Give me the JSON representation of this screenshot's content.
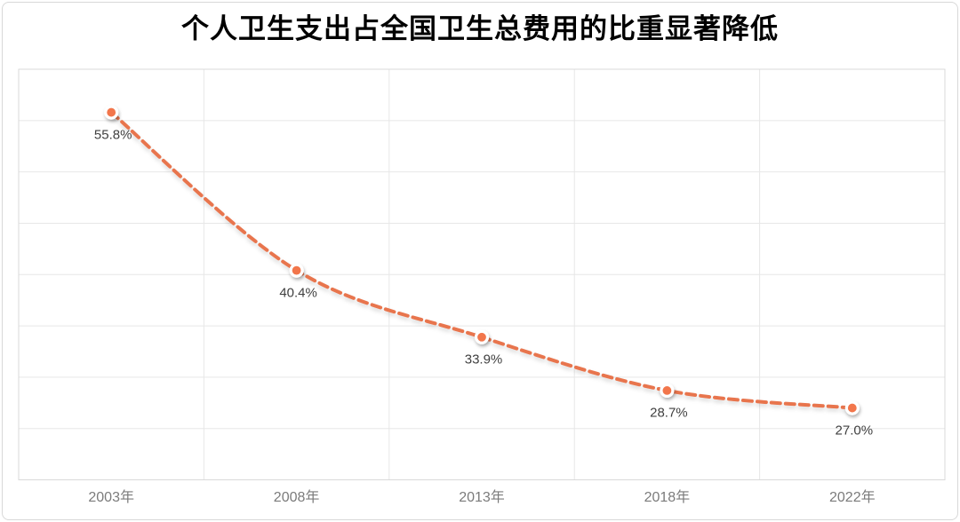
{
  "chart_data": {
    "type": "line",
    "title": "个人卫生支出占全国卫生总费用的比重显著降低",
    "categories": [
      "2003年",
      "2008年",
      "2013年",
      "2018年",
      "2022年"
    ],
    "values": [
      55.8,
      40.4,
      33.9,
      28.7,
      27.0
    ],
    "data_labels": [
      "55.8%",
      "40.4%",
      "33.9%",
      "28.7%",
      "27.0%"
    ],
    "xlabel": "",
    "ylabel": "",
    "ylim": [
      20,
      60
    ],
    "y_gridline_step": 5,
    "grid": true,
    "legend_position": "none",
    "line_style": "dashed",
    "marker": "circle",
    "colors": {
      "line": "#e8744e",
      "marker_fill": "#f2764b",
      "marker_ring": "#ffffff",
      "gridline": "#e7e7e7",
      "plot_border": "#d9d9d9",
      "data_label": "#3f3f3f",
      "tick_label": "#7b7b7b",
      "title": "#000000"
    }
  }
}
